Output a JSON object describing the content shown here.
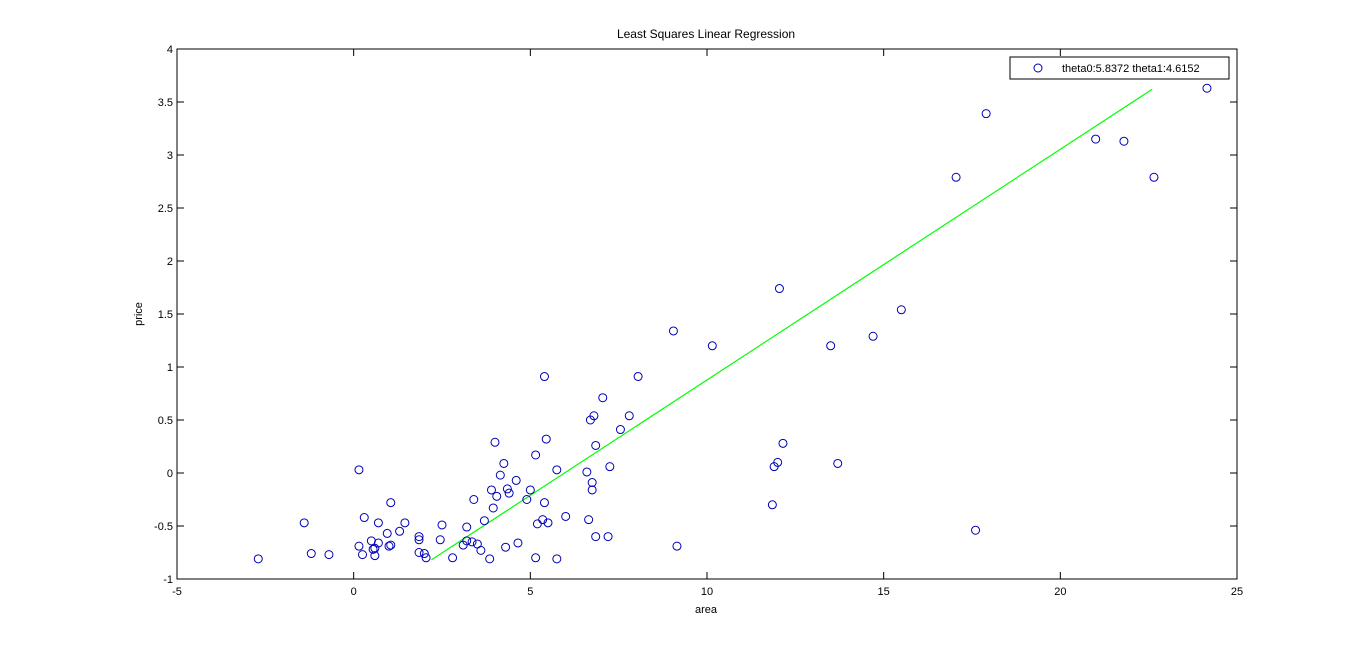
{
  "chart_data": {
    "type": "scatter",
    "title": "Least Squares Linear Regression",
    "xlabel": "area",
    "ylabel": "price",
    "xlim": [
      -5,
      25
    ],
    "ylim": [
      -1,
      4
    ],
    "xticks": [
      -5,
      0,
      5,
      10,
      15,
      20,
      25
    ],
    "xtick_labels": [
      "-5",
      "0",
      "5",
      "10",
      "15",
      "20",
      "25"
    ],
    "yticks": [
      -1,
      -0.5,
      0,
      0.5,
      1,
      1.5,
      2,
      2.5,
      3,
      3.5,
      4
    ],
    "ytick_labels": [
      "-1",
      "-0.5",
      "0",
      "0.5",
      "1",
      "1.5",
      "2",
      "2.5",
      "3",
      "3.5",
      "4"
    ],
    "grid": false,
    "legend_position": "top-right",
    "legend_label": "theta0:5.8372 theta1:4.6152",
    "series": [
      {
        "kind": "scatter",
        "marker": "open-circle",
        "color": "#0000b4",
        "points": [
          [
            -2.7,
            -0.81
          ],
          [
            -1.4,
            -0.47
          ],
          [
            -1.2,
            -0.76
          ],
          [
            -0.7,
            -0.77
          ],
          [
            0.15,
            0.03
          ],
          [
            0.15,
            -0.69
          ],
          [
            0.25,
            -0.77
          ],
          [
            0.3,
            -0.42
          ],
          [
            0.5,
            -0.64
          ],
          [
            0.55,
            -0.72
          ],
          [
            0.6,
            -0.78
          ],
          [
            0.6,
            -0.71
          ],
          [
            0.7,
            -0.66
          ],
          [
            0.7,
            -0.47
          ],
          [
            0.95,
            -0.57
          ],
          [
            1.0,
            -0.69
          ],
          [
            1.05,
            -0.68
          ],
          [
            1.05,
            -0.28
          ],
          [
            1.3,
            -0.55
          ],
          [
            1.45,
            -0.47
          ],
          [
            1.85,
            -0.6
          ],
          [
            1.85,
            -0.63
          ],
          [
            1.85,
            -0.75
          ],
          [
            2.0,
            -0.76
          ],
          [
            2.05,
            -0.8
          ],
          [
            2.45,
            -0.63
          ],
          [
            2.5,
            -0.49
          ],
          [
            2.8,
            -0.8
          ],
          [
            3.1,
            -0.68
          ],
          [
            3.2,
            -0.64
          ],
          [
            3.2,
            -0.51
          ],
          [
            3.35,
            -0.65
          ],
          [
            3.4,
            -0.25
          ],
          [
            3.5,
            -0.67
          ],
          [
            3.6,
            -0.73
          ],
          [
            3.7,
            -0.45
          ],
          [
            3.85,
            -0.81
          ],
          [
            3.9,
            -0.16
          ],
          [
            3.95,
            -0.33
          ],
          [
            4.0,
            0.29
          ],
          [
            4.05,
            -0.22
          ],
          [
            4.15,
            -0.02
          ],
          [
            4.25,
            0.09
          ],
          [
            4.3,
            -0.7
          ],
          [
            4.35,
            -0.15
          ],
          [
            4.4,
            -0.19
          ],
          [
            4.6,
            -0.07
          ],
          [
            4.65,
            -0.66
          ],
          [
            4.9,
            -0.25
          ],
          [
            5.0,
            -0.16
          ],
          [
            5.15,
            -0.8
          ],
          [
            5.15,
            0.17
          ],
          [
            5.2,
            -0.48
          ],
          [
            5.35,
            -0.44
          ],
          [
            5.4,
            -0.28
          ],
          [
            5.4,
            0.91
          ],
          [
            5.45,
            0.32
          ],
          [
            5.5,
            -0.47
          ],
          [
            5.75,
            -0.81
          ],
          [
            5.75,
            0.03
          ],
          [
            6.0,
            -0.41
          ],
          [
            6.6,
            0.01
          ],
          [
            6.65,
            -0.44
          ],
          [
            6.7,
            0.5
          ],
          [
            6.75,
            -0.09
          ],
          [
            6.75,
            -0.16
          ],
          [
            6.8,
            0.54
          ],
          [
            6.85,
            -0.6
          ],
          [
            6.85,
            0.26
          ],
          [
            7.05,
            0.71
          ],
          [
            7.2,
            -0.6
          ],
          [
            7.25,
            0.06
          ],
          [
            7.55,
            0.41
          ],
          [
            7.8,
            0.54
          ],
          [
            8.05,
            0.91
          ],
          [
            9.05,
            1.34
          ],
          [
            9.15,
            -0.69
          ],
          [
            10.15,
            1.2
          ],
          [
            11.85,
            -0.3
          ],
          [
            11.9,
            0.06
          ],
          [
            12.0,
            0.1
          ],
          [
            12.05,
            1.74
          ],
          [
            12.15,
            0.28
          ],
          [
            13.5,
            1.2
          ],
          [
            13.7,
            0.09
          ],
          [
            14.7,
            1.29
          ],
          [
            15.5,
            1.54
          ],
          [
            17.05,
            2.79
          ],
          [
            17.6,
            -0.54
          ],
          [
            17.9,
            3.39
          ],
          [
            21.0,
            3.15
          ],
          [
            21.8,
            3.13
          ],
          [
            22.65,
            2.79
          ],
          [
            24.15,
            3.63
          ]
        ]
      },
      {
        "kind": "line",
        "color": "#00ff00",
        "points": [
          [
            2.2,
            -0.82
          ],
          [
            22.6,
            3.62
          ]
        ]
      }
    ]
  }
}
